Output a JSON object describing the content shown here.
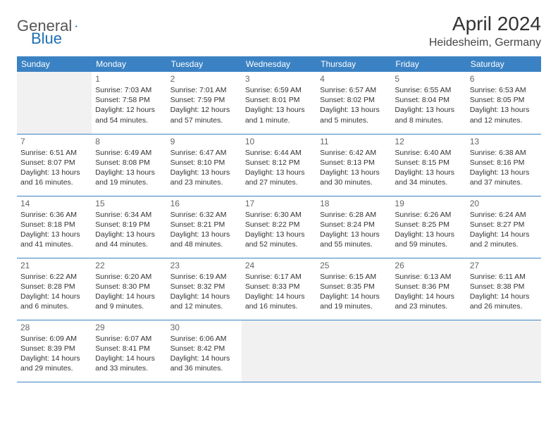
{
  "brand": {
    "part1": "General",
    "part2": "Blue"
  },
  "colors": {
    "header_bg": "#3b82c4",
    "header_text": "#ffffff",
    "border": "#3b82c4",
    "empty_cell": "#f1f1f1",
    "logo_triangle": "#1f6fb2",
    "text": "#333333"
  },
  "title": "April 2024",
  "location": "Heidesheim, Germany",
  "weekdays": [
    "Sunday",
    "Monday",
    "Tuesday",
    "Wednesday",
    "Thursday",
    "Friday",
    "Saturday"
  ],
  "layout": {
    "type": "calendar",
    "rows": 5,
    "cols": 7,
    "cell_font_size_pt": 8,
    "daynum_font_size_pt": 9,
    "header_font_size_pt": 9
  },
  "weeks": [
    [
      {
        "empty": true
      },
      {
        "day": "1",
        "sunrise": "Sunrise: 7:03 AM",
        "sunset": "Sunset: 7:58 PM",
        "daylight1": "Daylight: 12 hours",
        "daylight2": "and 54 minutes."
      },
      {
        "day": "2",
        "sunrise": "Sunrise: 7:01 AM",
        "sunset": "Sunset: 7:59 PM",
        "daylight1": "Daylight: 12 hours",
        "daylight2": "and 57 minutes."
      },
      {
        "day": "3",
        "sunrise": "Sunrise: 6:59 AM",
        "sunset": "Sunset: 8:01 PM",
        "daylight1": "Daylight: 13 hours",
        "daylight2": "and 1 minute."
      },
      {
        "day": "4",
        "sunrise": "Sunrise: 6:57 AM",
        "sunset": "Sunset: 8:02 PM",
        "daylight1": "Daylight: 13 hours",
        "daylight2": "and 5 minutes."
      },
      {
        "day": "5",
        "sunrise": "Sunrise: 6:55 AM",
        "sunset": "Sunset: 8:04 PM",
        "daylight1": "Daylight: 13 hours",
        "daylight2": "and 8 minutes."
      },
      {
        "day": "6",
        "sunrise": "Sunrise: 6:53 AM",
        "sunset": "Sunset: 8:05 PM",
        "daylight1": "Daylight: 13 hours",
        "daylight2": "and 12 minutes."
      }
    ],
    [
      {
        "day": "7",
        "sunrise": "Sunrise: 6:51 AM",
        "sunset": "Sunset: 8:07 PM",
        "daylight1": "Daylight: 13 hours",
        "daylight2": "and 16 minutes."
      },
      {
        "day": "8",
        "sunrise": "Sunrise: 6:49 AM",
        "sunset": "Sunset: 8:08 PM",
        "daylight1": "Daylight: 13 hours",
        "daylight2": "and 19 minutes."
      },
      {
        "day": "9",
        "sunrise": "Sunrise: 6:47 AM",
        "sunset": "Sunset: 8:10 PM",
        "daylight1": "Daylight: 13 hours",
        "daylight2": "and 23 minutes."
      },
      {
        "day": "10",
        "sunrise": "Sunrise: 6:44 AM",
        "sunset": "Sunset: 8:12 PM",
        "daylight1": "Daylight: 13 hours",
        "daylight2": "and 27 minutes."
      },
      {
        "day": "11",
        "sunrise": "Sunrise: 6:42 AM",
        "sunset": "Sunset: 8:13 PM",
        "daylight1": "Daylight: 13 hours",
        "daylight2": "and 30 minutes."
      },
      {
        "day": "12",
        "sunrise": "Sunrise: 6:40 AM",
        "sunset": "Sunset: 8:15 PM",
        "daylight1": "Daylight: 13 hours",
        "daylight2": "and 34 minutes."
      },
      {
        "day": "13",
        "sunrise": "Sunrise: 6:38 AM",
        "sunset": "Sunset: 8:16 PM",
        "daylight1": "Daylight: 13 hours",
        "daylight2": "and 37 minutes."
      }
    ],
    [
      {
        "day": "14",
        "sunrise": "Sunrise: 6:36 AM",
        "sunset": "Sunset: 8:18 PM",
        "daylight1": "Daylight: 13 hours",
        "daylight2": "and 41 minutes."
      },
      {
        "day": "15",
        "sunrise": "Sunrise: 6:34 AM",
        "sunset": "Sunset: 8:19 PM",
        "daylight1": "Daylight: 13 hours",
        "daylight2": "and 44 minutes."
      },
      {
        "day": "16",
        "sunrise": "Sunrise: 6:32 AM",
        "sunset": "Sunset: 8:21 PM",
        "daylight1": "Daylight: 13 hours",
        "daylight2": "and 48 minutes."
      },
      {
        "day": "17",
        "sunrise": "Sunrise: 6:30 AM",
        "sunset": "Sunset: 8:22 PM",
        "daylight1": "Daylight: 13 hours",
        "daylight2": "and 52 minutes."
      },
      {
        "day": "18",
        "sunrise": "Sunrise: 6:28 AM",
        "sunset": "Sunset: 8:24 PM",
        "daylight1": "Daylight: 13 hours",
        "daylight2": "and 55 minutes."
      },
      {
        "day": "19",
        "sunrise": "Sunrise: 6:26 AM",
        "sunset": "Sunset: 8:25 PM",
        "daylight1": "Daylight: 13 hours",
        "daylight2": "and 59 minutes."
      },
      {
        "day": "20",
        "sunrise": "Sunrise: 6:24 AM",
        "sunset": "Sunset: 8:27 PM",
        "daylight1": "Daylight: 14 hours",
        "daylight2": "and 2 minutes."
      }
    ],
    [
      {
        "day": "21",
        "sunrise": "Sunrise: 6:22 AM",
        "sunset": "Sunset: 8:28 PM",
        "daylight1": "Daylight: 14 hours",
        "daylight2": "and 6 minutes."
      },
      {
        "day": "22",
        "sunrise": "Sunrise: 6:20 AM",
        "sunset": "Sunset: 8:30 PM",
        "daylight1": "Daylight: 14 hours",
        "daylight2": "and 9 minutes."
      },
      {
        "day": "23",
        "sunrise": "Sunrise: 6:19 AM",
        "sunset": "Sunset: 8:32 PM",
        "daylight1": "Daylight: 14 hours",
        "daylight2": "and 12 minutes."
      },
      {
        "day": "24",
        "sunrise": "Sunrise: 6:17 AM",
        "sunset": "Sunset: 8:33 PM",
        "daylight1": "Daylight: 14 hours",
        "daylight2": "and 16 minutes."
      },
      {
        "day": "25",
        "sunrise": "Sunrise: 6:15 AM",
        "sunset": "Sunset: 8:35 PM",
        "daylight1": "Daylight: 14 hours",
        "daylight2": "and 19 minutes."
      },
      {
        "day": "26",
        "sunrise": "Sunrise: 6:13 AM",
        "sunset": "Sunset: 8:36 PM",
        "daylight1": "Daylight: 14 hours",
        "daylight2": "and 23 minutes."
      },
      {
        "day": "27",
        "sunrise": "Sunrise: 6:11 AM",
        "sunset": "Sunset: 8:38 PM",
        "daylight1": "Daylight: 14 hours",
        "daylight2": "and 26 minutes."
      }
    ],
    [
      {
        "day": "28",
        "sunrise": "Sunrise: 6:09 AM",
        "sunset": "Sunset: 8:39 PM",
        "daylight1": "Daylight: 14 hours",
        "daylight2": "and 29 minutes."
      },
      {
        "day": "29",
        "sunrise": "Sunrise: 6:07 AM",
        "sunset": "Sunset: 8:41 PM",
        "daylight1": "Daylight: 14 hours",
        "daylight2": "and 33 minutes."
      },
      {
        "day": "30",
        "sunrise": "Sunrise: 6:06 AM",
        "sunset": "Sunset: 8:42 PM",
        "daylight1": "Daylight: 14 hours",
        "daylight2": "and 36 minutes."
      },
      {
        "empty": true
      },
      {
        "empty": true
      },
      {
        "empty": true
      },
      {
        "empty": true
      }
    ]
  ]
}
